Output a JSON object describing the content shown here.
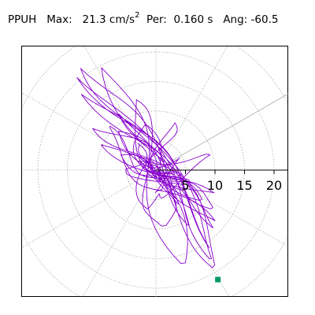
{
  "header": {
    "station": "PPUH",
    "max_label": "Max:",
    "max_value": "21.3",
    "max_unit": "cm/s",
    "max_unit_exp": "2",
    "per_label": "Per:",
    "per_value": "0.160 s",
    "ang_label": "Ang:",
    "ang_value": "-60.5"
  },
  "chart_data": {
    "type": "scatter",
    "projection": "polar",
    "title": "PPUH   Max:  21.3 cm/s2  Per:  0.160 s   Ang: -60.5",
    "r_ticks": [
      5,
      10,
      15,
      20
    ],
    "r_tick_labels": [
      "5",
      "10",
      "15",
      "20"
    ],
    "r_max": 23,
    "spokes_deg": [
      0,
      30,
      60,
      90,
      120,
      150,
      180,
      210,
      240,
      270,
      300,
      330
    ],
    "highlight_angle_deg": 30,
    "grid": true,
    "series": [
      {
        "color": "#8800cc",
        "note": "particle motion trace (approx. shape)",
        "x": [
          0,
          2,
          -2,
          3,
          -3,
          5,
          -5,
          8,
          -8,
          11,
          -12,
          14,
          -17,
          16,
          -20,
          19,
          -22,
          20,
          -19,
          16,
          -12,
          10,
          -6,
          5,
          3,
          -6,
          8,
          -10,
          12,
          -8,
          4,
          0,
          -3,
          6,
          -9,
          11,
          -11,
          7,
          -4,
          2,
          0
        ],
        "y": [
          0,
          4,
          -3,
          6,
          -5,
          8,
          -9,
          10,
          -12,
          14,
          -10,
          12,
          -6,
          8,
          -4,
          6,
          -2,
          4,
          3,
          -8,
          6,
          -10,
          12,
          -14,
          16,
          -6,
          10,
          -12,
          6,
          2,
          -4,
          8,
          -10,
          6,
          -4,
          2,
          0,
          3,
          -2,
          1,
          0
        ],
        "rotation_deg": -60.5
      }
    ],
    "end_point": {
      "r": 21.3,
      "angle_deg": -60.5,
      "color": "#009966"
    }
  }
}
